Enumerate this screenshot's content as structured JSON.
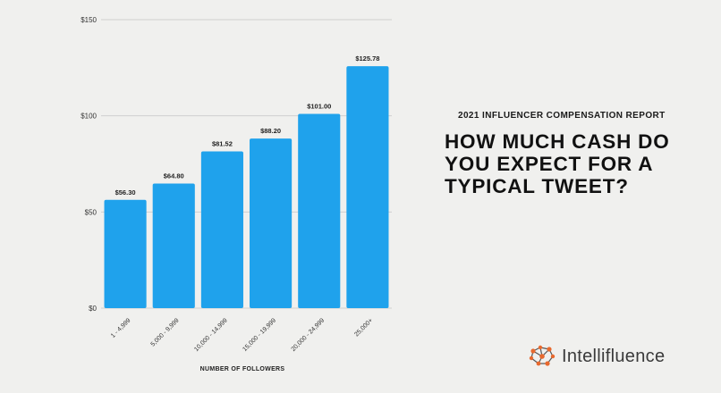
{
  "chart_data": {
    "type": "bar",
    "categories": [
      "1 - 4,999",
      "5,000 - 9,999",
      "10,000 - 14,999",
      "15,000 - 19,999",
      "20,000 - 24,999",
      "25,000+"
    ],
    "values": [
      56.3,
      64.8,
      81.52,
      88.2,
      101.0,
      125.78
    ],
    "data_labels": [
      "$56.30",
      "$64.80",
      "$81.52",
      "$88.20",
      "$101.00",
      "$125.78"
    ],
    "y_ticks": [
      0,
      50,
      100,
      150
    ],
    "y_tick_labels": [
      "$0",
      "$50",
      "$100",
      "$150"
    ],
    "ylim": [
      0,
      150
    ],
    "xlabel": "NUMBER OF FOLLOWERS",
    "ylabel": "",
    "bar_color": "#1fa2ec",
    "grid": true
  },
  "report_label": "2021 INFLUENCER COMPENSATION REPORT",
  "headline": {
    "line1": "HOW MUCH CASH DO",
    "line2": "YOU EXPECT FOR A",
    "line3": "TYPICAL TWEET?"
  },
  "brand": {
    "name": "Intellifluence",
    "icon": "brain-network-icon",
    "accent_color": "#e8692e"
  }
}
